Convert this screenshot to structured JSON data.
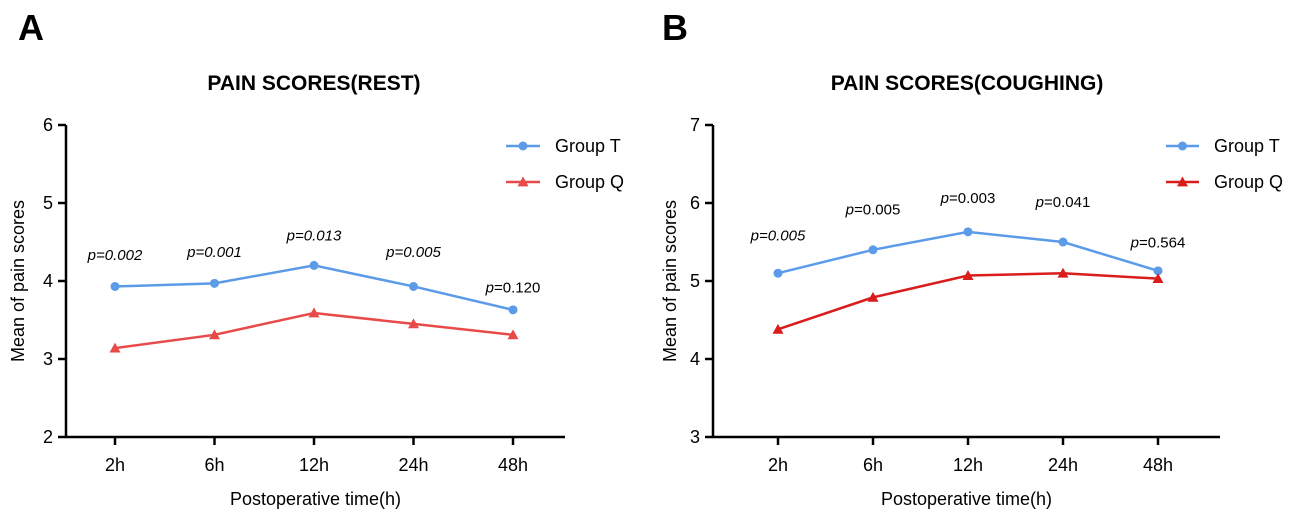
{
  "chart_data": [
    {
      "panel_label": "A",
      "type": "line",
      "title": "PAIN SCORES(REST)",
      "xlabel": "Postoperative time(h)",
      "ylabel": "Mean of pain scores",
      "categories": [
        "2h",
        "6h",
        "12h",
        "24h",
        "48h"
      ],
      "ylim": [
        2,
        6
      ],
      "yticks": [
        "2",
        "3",
        "4",
        "5",
        "6"
      ],
      "legend_position": "top-right",
      "series": [
        {
          "name": "Group T",
          "color": "#5B9BE8",
          "marker": "circle",
          "values": [
            3.93,
            3.97,
            4.2,
            3.93,
            3.63
          ]
        },
        {
          "name": "Group Q",
          "color": "#E84A4A",
          "marker": "triangle",
          "values": [
            3.14,
            3.31,
            3.59,
            3.45,
            3.31
          ]
        }
      ],
      "annotations": [
        {
          "category": "2h",
          "text": "p=0.002",
          "value": 4.27,
          "italic_all": true
        },
        {
          "category": "6h",
          "text": "p=0.001",
          "value": 4.31,
          "italic_all": true
        },
        {
          "category": "12h",
          "text": "p=0.013",
          "value": 4.52,
          "italic_all": true
        },
        {
          "category": "24h",
          "text": "p=0.005",
          "value": 4.31,
          "italic_all": true
        },
        {
          "category": "48h",
          "text": "p=0.120",
          "value": 3.85,
          "italic_all": false
        }
      ]
    },
    {
      "panel_label": "B",
      "type": "line",
      "title": "PAIN SCORES(COUGHING)",
      "xlabel": "Postoperative time(h)",
      "ylabel": "Mean of pain scores",
      "categories": [
        "2h",
        "6h",
        "12h",
        "24h",
        "48h"
      ],
      "ylim": [
        3,
        7
      ],
      "yticks": [
        "3",
        "4",
        "5",
        "6",
        "7"
      ],
      "legend_position": "top-right",
      "series": [
        {
          "name": "Group T",
          "color": "#5B9BE8",
          "marker": "circle",
          "values": [
            5.1,
            5.4,
            5.63,
            5.5,
            5.13
          ]
        },
        {
          "name": "Group Q",
          "color": "#D91C1C",
          "marker": "triangle",
          "values": [
            4.38,
            4.79,
            5.07,
            5.1,
            5.03
          ]
        }
      ],
      "annotations": [
        {
          "category": "2h",
          "text": "p=0.005",
          "value": 5.52,
          "italic_all": true
        },
        {
          "category": "6h",
          "text": "p=0.005",
          "value": 5.85,
          "italic_all": false
        },
        {
          "category": "12h",
          "text": "p=0.003",
          "value": 6.0,
          "italic_all": false
        },
        {
          "category": "24h",
          "text": "p=0.041",
          "value": 5.95,
          "italic_all": false
        },
        {
          "category": "48h",
          "text": "p=0.564",
          "value": 5.43,
          "italic_all": false
        }
      ]
    }
  ]
}
